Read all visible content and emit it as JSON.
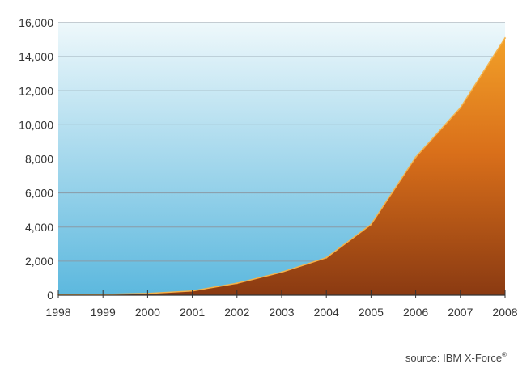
{
  "chart_data": {
    "type": "area",
    "title": "",
    "xlabel": "",
    "ylabel": "",
    "x": [
      "1998",
      "1999",
      "2000",
      "2001",
      "2002",
      "2003",
      "2004",
      "2005",
      "2006",
      "2007",
      "2008"
    ],
    "series": [
      {
        "name": "",
        "values": [
          30,
          50,
          100,
          250,
          700,
          1350,
          2200,
          4150,
          8100,
          11000,
          15100
        ]
      }
    ],
    "ylim": [
      0,
      16000
    ],
    "yticks": [
      0,
      2000,
      4000,
      6000,
      8000,
      10000,
      12000,
      14000,
      16000
    ],
    "ytick_labels": [
      "0",
      "2,000",
      "4,000",
      "6,000",
      "8,000",
      "10,000",
      "12,000",
      "14,000",
      "16,000"
    ],
    "grid": "horizontal",
    "legend": "none",
    "colors": {
      "plot_bg_top": "#eef8fb",
      "plot_bg_bottom": "#5cb8de",
      "area_top": "#f2a028",
      "area_mid": "#d96f1a",
      "area_bottom": "#8a3a12",
      "grid": "#8a9aa6",
      "axis": "#333333"
    }
  },
  "source": {
    "label": "source: IBM X-Force",
    "mark": "®"
  }
}
